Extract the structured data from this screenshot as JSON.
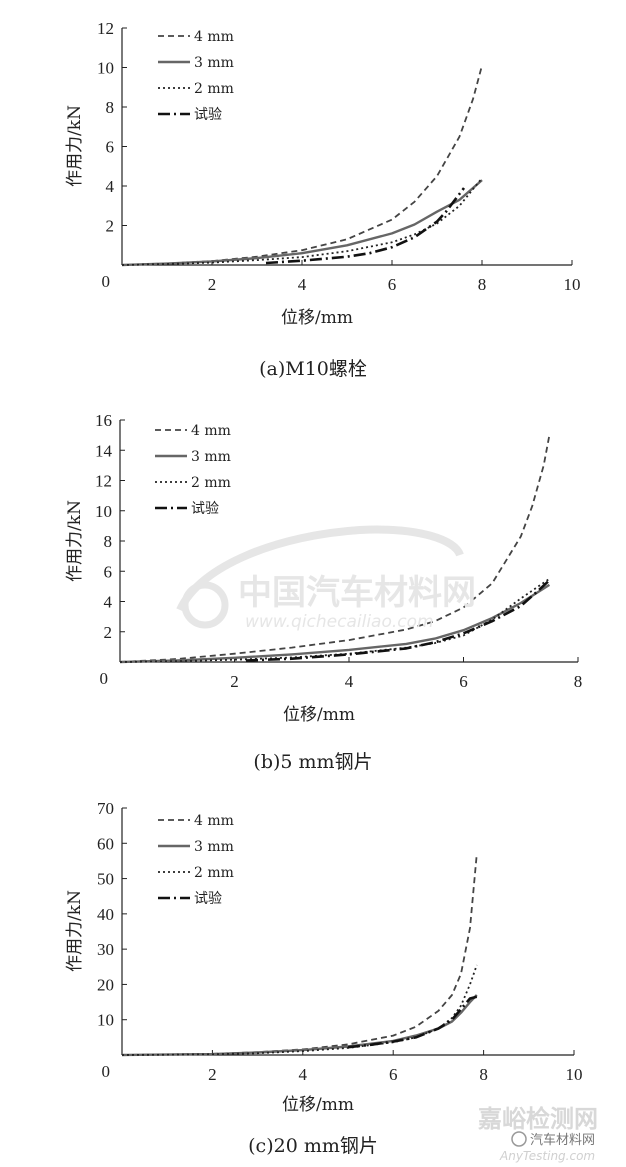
{
  "chart_data": [
    {
      "type": "line",
      "caption": "(a)M10螺栓",
      "xlabel": "位移/mm",
      "ylabel": "作用力/kN",
      "xlim": [
        0,
        10
      ],
      "ylim": [
        0,
        12
      ],
      "xticks": [
        2,
        4,
        6,
        8,
        10
      ],
      "yticks": [
        2,
        4,
        6,
        8,
        10,
        12
      ],
      "origin_label": "0",
      "legend": "top-left",
      "series": [
        {
          "name": "4 mm",
          "style": "dashed",
          "color": "#444444",
          "x": [
            0,
            1,
            2,
            3,
            4,
            5,
            6,
            6.5,
            7,
            7.5,
            7.8,
            8.0
          ],
          "y": [
            0,
            0.08,
            0.2,
            0.42,
            0.75,
            1.3,
            2.3,
            3.2,
            4.5,
            6.5,
            8.4,
            10.1
          ]
        },
        {
          "name": "3 mm",
          "style": "solid",
          "color": "#666666",
          "x": [
            0,
            1,
            2,
            3,
            4,
            5,
            6,
            6.5,
            7,
            7.5,
            8.0
          ],
          "y": [
            0,
            0.07,
            0.18,
            0.35,
            0.6,
            1.0,
            1.6,
            2.05,
            2.7,
            3.3,
            4.3
          ]
        },
        {
          "name": "2 mm",
          "style": "dotted",
          "color": "#222222",
          "x": [
            0,
            1,
            2,
            3,
            4,
            5,
            6,
            6.5,
            7,
            7.5,
            8.0
          ],
          "y": [
            0,
            0.05,
            0.12,
            0.25,
            0.4,
            0.7,
            1.15,
            1.55,
            2.1,
            3.0,
            4.4
          ]
        },
        {
          "name": "试验",
          "style": "dashdot",
          "color": "#111111",
          "x": [
            3.2,
            4,
            5,
            5.5,
            6,
            6.5,
            7,
            7.2,
            7.4,
            7.6
          ],
          "y": [
            0.1,
            0.22,
            0.42,
            0.6,
            0.9,
            1.4,
            2.2,
            2.7,
            3.3,
            3.9
          ]
        }
      ]
    },
    {
      "type": "line",
      "caption": "(b)5 mm钢片",
      "xlabel": "位移/mm",
      "ylabel": "作用力/kN",
      "xlim": [
        0,
        8
      ],
      "ylim": [
        0,
        16
      ],
      "xticks": [
        2,
        4,
        6,
        8
      ],
      "yticks": [
        2,
        4,
        6,
        8,
        10,
        12,
        14,
        16
      ],
      "origin_label": "0",
      "legend": "top-left",
      "series": [
        {
          "name": "4 mm",
          "style": "dashed",
          "color": "#444444",
          "x": [
            0,
            1,
            2,
            3,
            4,
            5,
            5.5,
            6,
            6.5,
            7,
            7.2,
            7.4,
            7.5
          ],
          "y": [
            0,
            0.2,
            0.55,
            0.95,
            1.45,
            2.15,
            2.7,
            3.6,
            5.2,
            8.3,
            10.3,
            13.0,
            15.0
          ]
        },
        {
          "name": "3 mm",
          "style": "solid",
          "color": "#666666",
          "x": [
            0,
            1,
            2,
            3,
            4,
            5,
            5.5,
            6,
            6.5,
            7,
            7.5
          ],
          "y": [
            0,
            0.1,
            0.28,
            0.5,
            0.8,
            1.2,
            1.55,
            2.1,
            2.9,
            3.9,
            5.1
          ]
        },
        {
          "name": "2 mm",
          "style": "dotted",
          "color": "#222222",
          "x": [
            0,
            1,
            2,
            3,
            4,
            5,
            5.5,
            6,
            6.5,
            7,
            7.5
          ],
          "y": [
            0,
            0.06,
            0.15,
            0.3,
            0.55,
            0.95,
            1.25,
            1.75,
            2.8,
            4.2,
            5.5
          ]
        },
        {
          "name": "试验",
          "style": "dashdot",
          "color": "#111111",
          "x": [
            2.2,
            3,
            4,
            5,
            5.5,
            6,
            6.5,
            7,
            7.3,
            7.5
          ],
          "y": [
            0.1,
            0.22,
            0.5,
            0.9,
            1.3,
            1.9,
            2.7,
            3.7,
            4.7,
            5.4
          ]
        }
      ]
    },
    {
      "type": "line",
      "caption": "(c)20 mm钢片",
      "xlabel": "位移/mm",
      "ylabel": "作用力/kN",
      "xlim": [
        0,
        10
      ],
      "ylim": [
        0,
        70
      ],
      "xticks": [
        2,
        4,
        6,
        8,
        10
      ],
      "yticks": [
        10,
        20,
        30,
        40,
        50,
        60,
        70
      ],
      "origin_label": "0",
      "legend": "top-left",
      "series": [
        {
          "name": "4 mm",
          "style": "dashed",
          "color": "#444444",
          "x": [
            0,
            2,
            3,
            4,
            5,
            6,
            6.5,
            7,
            7.3,
            7.5,
            7.7,
            7.85
          ],
          "y": [
            0,
            0.3,
            0.8,
            1.6,
            3.0,
            5.5,
            8.0,
            12.5,
            17.0,
            23.0,
            36.0,
            57.0
          ]
        },
        {
          "name": "3 mm",
          "style": "solid",
          "color": "#666666",
          "x": [
            0,
            2,
            3,
            4,
            5,
            6,
            6.5,
            7,
            7.3,
            7.5,
            7.7,
            7.85
          ],
          "y": [
            0,
            0.25,
            0.7,
            1.4,
            2.4,
            4.0,
            5.5,
            7.5,
            9.5,
            12.0,
            15.0,
            17.0
          ]
        },
        {
          "name": "2 mm",
          "style": "dotted",
          "color": "#222222",
          "x": [
            0,
            2,
            3,
            4,
            5,
            6,
            6.5,
            7,
            7.3,
            7.5,
            7.7,
            7.85
          ],
          "y": [
            0,
            0.2,
            0.5,
            1.1,
            2.0,
            3.6,
            5.0,
            7.5,
            10.5,
            14.0,
            20.0,
            25.5
          ]
        },
        {
          "name": "试验",
          "style": "dashdot",
          "color": "#111111",
          "x": [
            5.0,
            5.5,
            6,
            6.5,
            7,
            7.3,
            7.5,
            7.7,
            7.85
          ],
          "y": [
            2.2,
            2.9,
            3.8,
            5.0,
            7.5,
            10.0,
            13.0,
            16.0,
            16.5
          ]
        }
      ]
    }
  ],
  "watermarks": {
    "center_cn": "中国汽车材料网",
    "center_url": "www.qichecailiao.com",
    "bottom_right_cn": "嘉峪检测网",
    "bottom_right_en": "AnyTesting.com",
    "bottom_right_tag": "汽车材料网"
  }
}
